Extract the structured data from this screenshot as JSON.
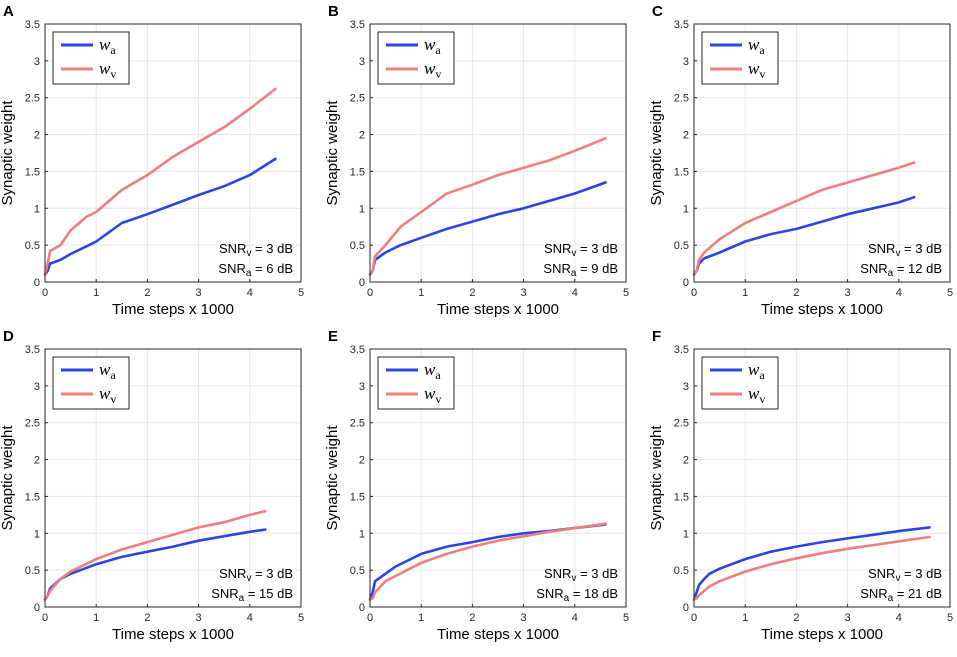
{
  "colors": {
    "w_a": "#2946e0",
    "w_v": "#f07e7e",
    "grid": "#e6e6e6",
    "axis": "#262626"
  },
  "chart_data": [
    {
      "panel": "A",
      "type": "line",
      "xlabel": "Time steps x 1000",
      "ylabel": "Synaptic weight",
      "xlim": [
        0,
        5
      ],
      "ylim": [
        0,
        3.5
      ],
      "xticks": [
        "0",
        "1",
        "2",
        "3",
        "4",
        "5"
      ],
      "yticks": [
        "0",
        "0.5",
        "1",
        "1.5",
        "2",
        "2.5",
        "3",
        "3.5"
      ],
      "grid": true,
      "legend_position": "top-left",
      "legend": [
        {
          "base": "w",
          "sub": "a"
        },
        {
          "base": "w",
          "sub": "v"
        }
      ],
      "annotation": [
        {
          "pre": "SNR",
          "sub": "v",
          "post": " = 3 dB"
        },
        {
          "pre": "SNR",
          "sub": "a",
          "post": " = 6 dB"
        }
      ],
      "series": [
        {
          "name": "w_a",
          "x": [
            0,
            0.05,
            0.1,
            0.3,
            0.5,
            0.8,
            1.0,
            1.5,
            2.0,
            2.5,
            3.0,
            3.5,
            4.0,
            4.5
          ],
          "y": [
            0.1,
            0.15,
            0.25,
            0.3,
            0.38,
            0.48,
            0.55,
            0.8,
            0.92,
            1.05,
            1.18,
            1.3,
            1.45,
            1.67
          ]
        },
        {
          "name": "w_v",
          "x": [
            0,
            0.05,
            0.1,
            0.3,
            0.5,
            0.8,
            1.0,
            1.5,
            2.0,
            2.5,
            3.0,
            3.5,
            4.0,
            4.5
          ],
          "y": [
            0.1,
            0.25,
            0.42,
            0.5,
            0.7,
            0.88,
            0.95,
            1.25,
            1.45,
            1.7,
            1.9,
            2.1,
            2.35,
            2.62
          ]
        }
      ]
    },
    {
      "panel": "B",
      "type": "line",
      "xlabel": "Time steps x 1000",
      "ylabel": "Synaptic weight",
      "xlim": [
        0,
        5
      ],
      "ylim": [
        0,
        3.5
      ],
      "xticks": [
        "0",
        "1",
        "2",
        "3",
        "4",
        "5"
      ],
      "yticks": [
        "0",
        "0.5",
        "1",
        "1.5",
        "2",
        "2.5",
        "3",
        "3.5"
      ],
      "grid": true,
      "legend_position": "top-left",
      "legend": [
        {
          "base": "w",
          "sub": "a"
        },
        {
          "base": "w",
          "sub": "v"
        }
      ],
      "annotation": [
        {
          "pre": "SNR",
          "sub": "v",
          "post": " = 3 dB"
        },
        {
          "pre": "SNR",
          "sub": "a",
          "post": " = 9 dB"
        }
      ],
      "series": [
        {
          "name": "w_a",
          "x": [
            0,
            0.05,
            0.1,
            0.3,
            0.6,
            1.0,
            1.5,
            2.0,
            2.5,
            3.0,
            3.5,
            4.0,
            4.6
          ],
          "y": [
            0.1,
            0.15,
            0.3,
            0.4,
            0.5,
            0.6,
            0.72,
            0.82,
            0.92,
            1.0,
            1.1,
            1.2,
            1.35
          ]
        },
        {
          "name": "w_v",
          "x": [
            0,
            0.05,
            0.1,
            0.3,
            0.6,
            1.0,
            1.5,
            2.0,
            2.5,
            3.0,
            3.5,
            4.0,
            4.6
          ],
          "y": [
            0.1,
            0.15,
            0.35,
            0.5,
            0.75,
            0.95,
            1.2,
            1.32,
            1.45,
            1.55,
            1.65,
            1.78,
            1.95
          ]
        }
      ]
    },
    {
      "panel": "C",
      "type": "line",
      "xlabel": "Time steps x 1000",
      "ylabel": "Synaptic weight",
      "xlim": [
        0,
        5
      ],
      "ylim": [
        0,
        3.5
      ],
      "xticks": [
        "0",
        "1",
        "2",
        "3",
        "4",
        "5"
      ],
      "yticks": [
        "0",
        "0.5",
        "1",
        "1.5",
        "2",
        "2.5",
        "3",
        "3.5"
      ],
      "grid": true,
      "legend_position": "top-left",
      "legend": [
        {
          "base": "w",
          "sub": "a"
        },
        {
          "base": "w",
          "sub": "v"
        }
      ],
      "annotation": [
        {
          "pre": "SNR",
          "sub": "v",
          "post": " = 3 dB"
        },
        {
          "pre": "SNR",
          "sub": "a",
          "post": " = 12 dB"
        }
      ],
      "series": [
        {
          "name": "w_a",
          "x": [
            0,
            0.05,
            0.1,
            0.2,
            0.5,
            1.0,
            1.5,
            2.0,
            2.5,
            3.0,
            3.5,
            4.0,
            4.3
          ],
          "y": [
            0.1,
            0.15,
            0.25,
            0.32,
            0.4,
            0.55,
            0.65,
            0.72,
            0.82,
            0.92,
            1.0,
            1.08,
            1.15
          ]
        },
        {
          "name": "w_v",
          "x": [
            0,
            0.05,
            0.1,
            0.2,
            0.5,
            1.0,
            1.5,
            2.0,
            2.5,
            3.0,
            3.5,
            4.0,
            4.3
          ],
          "y": [
            0.1,
            0.15,
            0.3,
            0.4,
            0.58,
            0.8,
            0.95,
            1.1,
            1.25,
            1.35,
            1.45,
            1.55,
            1.62
          ]
        }
      ]
    },
    {
      "panel": "D",
      "type": "line",
      "xlabel": "Time steps x 1000",
      "ylabel": "Synaptic weight",
      "xlim": [
        0,
        5
      ],
      "ylim": [
        0,
        3.5
      ],
      "xticks": [
        "0",
        "1",
        "2",
        "3",
        "4",
        "5"
      ],
      "yticks": [
        "0",
        "0.5",
        "1",
        "1.5",
        "2",
        "2.5",
        "3",
        "3.5"
      ],
      "grid": true,
      "legend_position": "top-left",
      "legend": [
        {
          "base": "w",
          "sub": "a"
        },
        {
          "base": "w",
          "sub": "v"
        }
      ],
      "annotation": [
        {
          "pre": "SNR",
          "sub": "v",
          "post": " = 3 dB"
        },
        {
          "pre": "SNR",
          "sub": "a",
          "post": " = 15 dB"
        }
      ],
      "series": [
        {
          "name": "w_a",
          "x": [
            0,
            0.05,
            0.1,
            0.3,
            0.5,
            1.0,
            1.5,
            2.0,
            2.5,
            3.0,
            3.5,
            4.0,
            4.3
          ],
          "y": [
            0.1,
            0.15,
            0.25,
            0.38,
            0.45,
            0.58,
            0.68,
            0.75,
            0.82,
            0.9,
            0.96,
            1.02,
            1.05
          ]
        },
        {
          "name": "w_v",
          "x": [
            0,
            0.05,
            0.1,
            0.3,
            0.5,
            1.0,
            1.5,
            2.0,
            2.5,
            3.0,
            3.5,
            4.0,
            4.3
          ],
          "y": [
            0.1,
            0.15,
            0.22,
            0.38,
            0.48,
            0.65,
            0.78,
            0.88,
            0.98,
            1.08,
            1.15,
            1.25,
            1.3
          ]
        }
      ]
    },
    {
      "panel": "E",
      "type": "line",
      "xlabel": "Time steps x 1000",
      "ylabel": "Synaptic weight",
      "xlim": [
        0,
        5
      ],
      "ylim": [
        0,
        3.5
      ],
      "xticks": [
        "0",
        "1",
        "2",
        "3",
        "4",
        "5"
      ],
      "yticks": [
        "0",
        "0.5",
        "1",
        "1.5",
        "2",
        "2.5",
        "3",
        "3.5"
      ],
      "grid": true,
      "legend_position": "top-left",
      "legend": [
        {
          "base": "w",
          "sub": "a"
        },
        {
          "base": "w",
          "sub": "v"
        }
      ],
      "annotation": [
        {
          "pre": "SNR",
          "sub": "v",
          "post": " = 3 dB"
        },
        {
          "pre": "SNR",
          "sub": "a",
          "post": " = 18 dB"
        }
      ],
      "series": [
        {
          "name": "w_a",
          "x": [
            0,
            0.05,
            0.1,
            0.3,
            0.5,
            1.0,
            1.5,
            2.0,
            2.5,
            3.0,
            3.5,
            4.0,
            4.6
          ],
          "y": [
            0.1,
            0.2,
            0.35,
            0.45,
            0.55,
            0.72,
            0.82,
            0.88,
            0.95,
            1.0,
            1.03,
            1.07,
            1.12
          ]
        },
        {
          "name": "w_v",
          "x": [
            0,
            0.05,
            0.1,
            0.3,
            0.5,
            1.0,
            1.5,
            2.0,
            2.5,
            3.0,
            3.5,
            4.0,
            4.6
          ],
          "y": [
            0.1,
            0.12,
            0.2,
            0.35,
            0.42,
            0.6,
            0.72,
            0.82,
            0.9,
            0.96,
            1.02,
            1.07,
            1.13
          ]
        }
      ]
    },
    {
      "panel": "F",
      "type": "line",
      "xlabel": "Time steps x 1000",
      "ylabel": "Synaptic weight",
      "xlim": [
        0,
        5
      ],
      "ylim": [
        0,
        3.5
      ],
      "xticks": [
        "0",
        "1",
        "2",
        "3",
        "4",
        "5"
      ],
      "yticks": [
        "0",
        "0.5",
        "1",
        "1.5",
        "2",
        "2.5",
        "3",
        "3.5"
      ],
      "grid": true,
      "legend_position": "top-left",
      "legend": [
        {
          "base": "w",
          "sub": "a"
        },
        {
          "base": "w",
          "sub": "v"
        }
      ],
      "annotation": [
        {
          "pre": "SNR",
          "sub": "v",
          "post": " = 3 dB"
        },
        {
          "pre": "SNR",
          "sub": "a",
          "post": " = 21 dB"
        }
      ],
      "series": [
        {
          "name": "w_a",
          "x": [
            0,
            0.05,
            0.1,
            0.2,
            0.3,
            0.5,
            1.0,
            1.5,
            2.0,
            2.5,
            3.0,
            3.5,
            4.0,
            4.6
          ],
          "y": [
            0.1,
            0.2,
            0.3,
            0.38,
            0.45,
            0.52,
            0.65,
            0.75,
            0.82,
            0.88,
            0.93,
            0.98,
            1.03,
            1.08
          ]
        },
        {
          "name": "w_v",
          "x": [
            0,
            0.05,
            0.1,
            0.2,
            0.3,
            0.5,
            1.0,
            1.5,
            2.0,
            2.5,
            3.0,
            3.5,
            4.0,
            4.6
          ],
          "y": [
            0.1,
            0.12,
            0.16,
            0.22,
            0.28,
            0.35,
            0.48,
            0.58,
            0.66,
            0.73,
            0.79,
            0.84,
            0.89,
            0.95
          ]
        }
      ]
    }
  ]
}
